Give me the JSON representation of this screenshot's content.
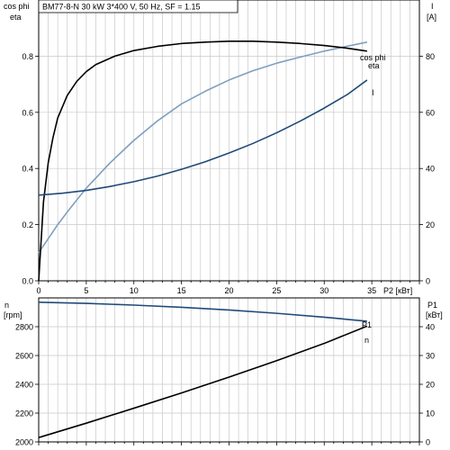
{
  "chart_data": [
    {
      "type": "line",
      "title": "BM77-8-N   30 kW   3*400 V, 50 Hz, SF = 1.15",
      "xlabel": "P2 [кВт]",
      "xlim": [
        0,
        40
      ],
      "xticks": [
        0,
        5,
        10,
        15,
        20,
        25,
        30,
        35
      ],
      "ylabel_left_1": "cos phi",
      "ylabel_left_2": "eta",
      "ylim_left": [
        0,
        1
      ],
      "yticks_left": [
        "0.0",
        "0.2",
        "0.4",
        "0.6",
        "0.8"
      ],
      "ylabel_right_1": "I",
      "ylabel_right_2": "[A]",
      "ylim_right": [
        0,
        100
      ],
      "yticks_right": [
        "0",
        "20",
        "40",
        "60",
        "80"
      ],
      "grid": true,
      "series": [
        {
          "name": "cos phi",
          "axis": "left",
          "color": "#7f9fbf",
          "x": [
            0,
            1,
            2,
            3,
            5,
            7.5,
            10,
            12.5,
            15,
            17.5,
            20,
            22.5,
            25,
            27.5,
            30,
            32.5,
            34.5
          ],
          "y": [
            0.1,
            0.15,
            0.2,
            0.245,
            0.33,
            0.42,
            0.5,
            0.57,
            0.63,
            0.675,
            0.715,
            0.748,
            0.775,
            0.797,
            0.818,
            0.836,
            0.85
          ]
        },
        {
          "name": "eta",
          "axis": "left",
          "color": "#000000",
          "x": [
            0,
            0.5,
            1,
            1.5,
            2,
            3,
            4,
            5,
            6,
            8,
            10,
            12.5,
            15,
            17.5,
            20,
            22.5,
            25,
            27.5,
            30,
            32.5,
            34.5
          ],
          "y": [
            0.0,
            0.28,
            0.42,
            0.51,
            0.58,
            0.66,
            0.71,
            0.745,
            0.77,
            0.8,
            0.82,
            0.835,
            0.845,
            0.85,
            0.853,
            0.853,
            0.85,
            0.845,
            0.838,
            0.828,
            0.818
          ]
        },
        {
          "name": "I",
          "axis": "right",
          "color": "#1f4a78",
          "x": [
            0,
            2.5,
            5,
            7.5,
            10,
            12.5,
            15,
            17.5,
            20,
            22.5,
            25,
            27.5,
            30,
            32.5,
            34.5
          ],
          "y": [
            30.5,
            31.2,
            32.2,
            33.6,
            35.3,
            37.3,
            39.7,
            42.4,
            45.5,
            48.9,
            52.7,
            56.9,
            61.5,
            66.5,
            71.5
          ]
        }
      ]
    },
    {
      "type": "line",
      "xlim": [
        0,
        40
      ],
      "ylabel_left_1": "n",
      "ylabel_left_2": "[rpm]",
      "ylim_left": [
        2000,
        3000
      ],
      "yticks_left": [
        "2000",
        "2200",
        "2400",
        "2600",
        "2800"
      ],
      "ylabel_right_1": "P1",
      "ylabel_right_2": "[кВт]",
      "ylim_right": [
        0,
        50
      ],
      "yticks_right": [
        "0",
        "10",
        "20",
        "30",
        "40"
      ],
      "grid": true,
      "series": [
        {
          "name": "n",
          "axis": "left",
          "color": "#1f4a78",
          "x": [
            0,
            5,
            10,
            15,
            20,
            25,
            30,
            34.5
          ],
          "y": [
            2970,
            2962,
            2950,
            2935,
            2916,
            2893,
            2866,
            2838
          ]
        },
        {
          "name": "P1",
          "axis": "right",
          "color": "#000000",
          "x": [
            0,
            5,
            10,
            15,
            20,
            25,
            30,
            34.5
          ],
          "y": [
            1.5,
            6.5,
            11.7,
            17.0,
            22.5,
            28.2,
            34.2,
            40.2
          ]
        }
      ]
    }
  ]
}
